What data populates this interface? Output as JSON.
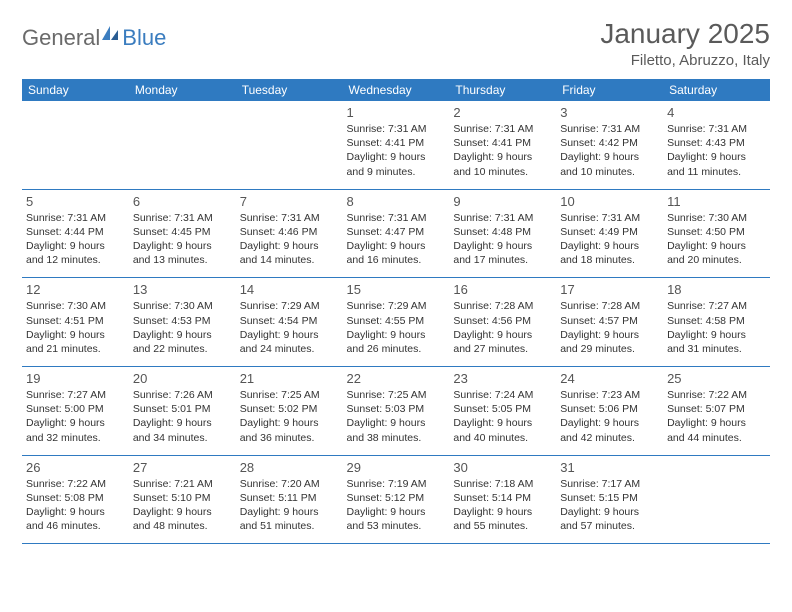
{
  "logo": {
    "text1": "General",
    "text2": "Blue"
  },
  "title": "January 2025",
  "location": "Filetto, Abruzzo, Italy",
  "dayHeaders": [
    "Sunday",
    "Monday",
    "Tuesday",
    "Wednesday",
    "Thursday",
    "Friday",
    "Saturday"
  ],
  "colors": {
    "headerBg": "#2f7ac1",
    "headerText": "#ffffff",
    "rowBorder": "#2f7ac1",
    "logoGrey": "#6a6a6a",
    "logoBlue": "#3b7dbf",
    "titleColor": "#5a5a5a",
    "textColor": "#333333",
    "background": "#ffffff"
  },
  "typography": {
    "titleFontSize": 28,
    "locationFontSize": 15,
    "headerFontSize": 12,
    "dayNumFontSize": 13,
    "infoFontSize": 10.5,
    "logoFontSize": 22
  },
  "weeks": [
    [
      null,
      null,
      null,
      {
        "n": "1",
        "sr": "7:31 AM",
        "ss": "4:41 PM",
        "dl": "9 hours and 9 minutes."
      },
      {
        "n": "2",
        "sr": "7:31 AM",
        "ss": "4:41 PM",
        "dl": "9 hours and 10 minutes."
      },
      {
        "n": "3",
        "sr": "7:31 AM",
        "ss": "4:42 PM",
        "dl": "9 hours and 10 minutes."
      },
      {
        "n": "4",
        "sr": "7:31 AM",
        "ss": "4:43 PM",
        "dl": "9 hours and 11 minutes."
      }
    ],
    [
      {
        "n": "5",
        "sr": "7:31 AM",
        "ss": "4:44 PM",
        "dl": "9 hours and 12 minutes."
      },
      {
        "n": "6",
        "sr": "7:31 AM",
        "ss": "4:45 PM",
        "dl": "9 hours and 13 minutes."
      },
      {
        "n": "7",
        "sr": "7:31 AM",
        "ss": "4:46 PM",
        "dl": "9 hours and 14 minutes."
      },
      {
        "n": "8",
        "sr": "7:31 AM",
        "ss": "4:47 PM",
        "dl": "9 hours and 16 minutes."
      },
      {
        "n": "9",
        "sr": "7:31 AM",
        "ss": "4:48 PM",
        "dl": "9 hours and 17 minutes."
      },
      {
        "n": "10",
        "sr": "7:31 AM",
        "ss": "4:49 PM",
        "dl": "9 hours and 18 minutes."
      },
      {
        "n": "11",
        "sr": "7:30 AM",
        "ss": "4:50 PM",
        "dl": "9 hours and 20 minutes."
      }
    ],
    [
      {
        "n": "12",
        "sr": "7:30 AM",
        "ss": "4:51 PM",
        "dl": "9 hours and 21 minutes."
      },
      {
        "n": "13",
        "sr": "7:30 AM",
        "ss": "4:53 PM",
        "dl": "9 hours and 22 minutes."
      },
      {
        "n": "14",
        "sr": "7:29 AM",
        "ss": "4:54 PM",
        "dl": "9 hours and 24 minutes."
      },
      {
        "n": "15",
        "sr": "7:29 AM",
        "ss": "4:55 PM",
        "dl": "9 hours and 26 minutes."
      },
      {
        "n": "16",
        "sr": "7:28 AM",
        "ss": "4:56 PM",
        "dl": "9 hours and 27 minutes."
      },
      {
        "n": "17",
        "sr": "7:28 AM",
        "ss": "4:57 PM",
        "dl": "9 hours and 29 minutes."
      },
      {
        "n": "18",
        "sr": "7:27 AM",
        "ss": "4:58 PM",
        "dl": "9 hours and 31 minutes."
      }
    ],
    [
      {
        "n": "19",
        "sr": "7:27 AM",
        "ss": "5:00 PM",
        "dl": "9 hours and 32 minutes."
      },
      {
        "n": "20",
        "sr": "7:26 AM",
        "ss": "5:01 PM",
        "dl": "9 hours and 34 minutes."
      },
      {
        "n": "21",
        "sr": "7:25 AM",
        "ss": "5:02 PM",
        "dl": "9 hours and 36 minutes."
      },
      {
        "n": "22",
        "sr": "7:25 AM",
        "ss": "5:03 PM",
        "dl": "9 hours and 38 minutes."
      },
      {
        "n": "23",
        "sr": "7:24 AM",
        "ss": "5:05 PM",
        "dl": "9 hours and 40 minutes."
      },
      {
        "n": "24",
        "sr": "7:23 AM",
        "ss": "5:06 PM",
        "dl": "9 hours and 42 minutes."
      },
      {
        "n": "25",
        "sr": "7:22 AM",
        "ss": "5:07 PM",
        "dl": "9 hours and 44 minutes."
      }
    ],
    [
      {
        "n": "26",
        "sr": "7:22 AM",
        "ss": "5:08 PM",
        "dl": "9 hours and 46 minutes."
      },
      {
        "n": "27",
        "sr": "7:21 AM",
        "ss": "5:10 PM",
        "dl": "9 hours and 48 minutes."
      },
      {
        "n": "28",
        "sr": "7:20 AM",
        "ss": "5:11 PM",
        "dl": "9 hours and 51 minutes."
      },
      {
        "n": "29",
        "sr": "7:19 AM",
        "ss": "5:12 PM",
        "dl": "9 hours and 53 minutes."
      },
      {
        "n": "30",
        "sr": "7:18 AM",
        "ss": "5:14 PM",
        "dl": "9 hours and 55 minutes."
      },
      {
        "n": "31",
        "sr": "7:17 AM",
        "ss": "5:15 PM",
        "dl": "9 hours and 57 minutes."
      },
      null
    ]
  ],
  "labels": {
    "sunrise": "Sunrise:",
    "sunset": "Sunset:",
    "daylight": "Daylight:"
  }
}
